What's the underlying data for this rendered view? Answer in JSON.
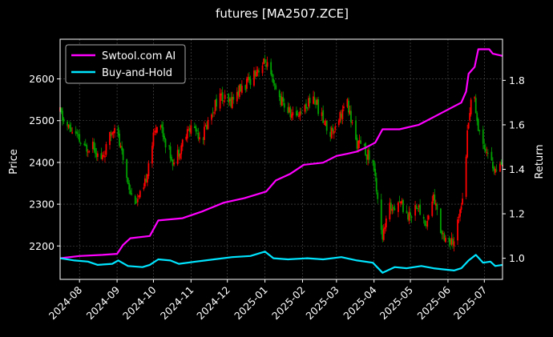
{
  "chart_data": {
    "type": "candlestick+line",
    "title": "futures [MA2507.ZCE]",
    "ylabel_left": "Price",
    "ylabel_right": "Return",
    "x_range": [
      "2024-07-16",
      "2025-07-16"
    ],
    "ylim_left": [
      2120,
      2695
    ],
    "ylim_right": [
      0.905,
      1.985
    ],
    "left_ticks": [
      2200,
      2300,
      2400,
      2500,
      2600
    ],
    "right_ticks": [
      1.0,
      1.2,
      1.4,
      1.6,
      1.8
    ],
    "x_ticks": [
      "2024-08",
      "2024-09",
      "2024-10",
      "2024-11",
      "2024-12",
      "2025-01",
      "2025-02",
      "2025-03",
      "2025-04",
      "2025-05",
      "2025-06",
      "2025-07"
    ],
    "grid": true,
    "legend_position": "top-left",
    "colors": {
      "up": "#ff0000",
      "down": "#00a000",
      "ai": "#ff00ff",
      "bh": "#00e5ff",
      "background": "#000000"
    },
    "price_path": [
      [
        "2024-07-16",
        2520
      ],
      [
        "2024-07-20",
        2490
      ],
      [
        "2024-07-28",
        2470
      ],
      [
        "2024-08-05",
        2430
      ],
      [
        "2024-08-12",
        2450
      ],
      [
        "2024-08-18",
        2400
      ],
      [
        "2024-08-24",
        2440
      ],
      [
        "2024-08-30",
        2495
      ],
      [
        "2024-09-04",
        2430
      ],
      [
        "2024-09-08",
        2380
      ],
      [
        "2024-09-13",
        2320
      ],
      [
        "2024-09-18",
        2310
      ],
      [
        "2024-09-23",
        2330
      ],
      [
        "2024-09-28",
        2420
      ],
      [
        "2024-10-05",
        2510
      ],
      [
        "2024-10-12",
        2440
      ],
      [
        "2024-10-18",
        2400
      ],
      [
        "2024-10-25",
        2450
      ],
      [
        "2024-11-02",
        2490
      ],
      [
        "2024-11-10",
        2460
      ],
      [
        "2024-11-18",
        2520
      ],
      [
        "2024-11-24",
        2560
      ],
      [
        "2024-12-02",
        2540
      ],
      [
        "2024-12-10",
        2570
      ],
      [
        "2024-12-18",
        2590
      ],
      [
        "2024-12-24",
        2620
      ],
      [
        "2025-01-02",
        2640
      ],
      [
        "2025-01-08",
        2580
      ],
      [
        "2025-01-16",
        2540
      ],
      [
        "2025-01-24",
        2510
      ],
      [
        "2025-02-02",
        2530
      ],
      [
        "2025-02-10",
        2560
      ],
      [
        "2025-02-18",
        2500
      ],
      [
        "2025-02-24",
        2470
      ],
      [
        "2025-03-03",
        2510
      ],
      [
        "2025-03-10",
        2540
      ],
      [
        "2025-03-17",
        2450
      ],
      [
        "2025-03-24",
        2430
      ],
      [
        "2025-03-31",
        2400
      ],
      [
        "2025-04-04",
        2320
      ],
      [
        "2025-04-08",
        2220
      ],
      [
        "2025-04-14",
        2290
      ],
      [
        "2025-04-22",
        2310
      ],
      [
        "2025-04-30",
        2270
      ],
      [
        "2025-05-06",
        2300
      ],
      [
        "2025-05-14",
        2250
      ],
      [
        "2025-05-20",
        2320
      ],
      [
        "2025-05-26",
        2240
      ],
      [
        "2025-06-02",
        2210
      ],
      [
        "2025-06-06",
        2200
      ],
      [
        "2025-06-10",
        2280
      ],
      [
        "2025-06-14",
        2340
      ],
      [
        "2025-06-18",
        2510
      ],
      [
        "2025-06-22",
        2580
      ],
      [
        "2025-06-26",
        2480
      ],
      [
        "2025-06-30",
        2450
      ],
      [
        "2025-07-04",
        2420
      ],
      [
        "2025-07-10",
        2380
      ],
      [
        "2025-07-16",
        2385
      ]
    ],
    "series": [
      {
        "name": "Swtool.com AI",
        "points": [
          [
            "2024-07-16",
            1.0
          ],
          [
            "2024-08-01",
            1.01
          ],
          [
            "2024-08-20",
            1.015
          ],
          [
            "2024-09-01",
            1.02
          ],
          [
            "2024-09-06",
            1.06
          ],
          [
            "2024-09-12",
            1.09
          ],
          [
            "2024-09-28",
            1.1
          ],
          [
            "2024-10-05",
            1.17
          ],
          [
            "2024-10-25",
            1.18
          ],
          [
            "2024-11-10",
            1.21
          ],
          [
            "2024-11-28",
            1.25
          ],
          [
            "2024-12-15",
            1.27
          ],
          [
            "2025-01-02",
            1.3
          ],
          [
            "2025-01-10",
            1.35
          ],
          [
            "2025-01-22",
            1.38
          ],
          [
            "2025-02-02",
            1.42
          ],
          [
            "2025-02-18",
            1.43
          ],
          [
            "2025-03-01",
            1.46
          ],
          [
            "2025-03-10",
            1.47
          ],
          [
            "2025-03-18",
            1.48
          ],
          [
            "2025-03-26",
            1.5
          ],
          [
            "2025-04-02",
            1.52
          ],
          [
            "2025-04-08",
            1.58
          ],
          [
            "2025-04-22",
            1.58
          ],
          [
            "2025-05-08",
            1.6
          ],
          [
            "2025-05-22",
            1.64
          ],
          [
            "2025-06-05",
            1.68
          ],
          [
            "2025-06-12",
            1.7
          ],
          [
            "2025-06-16",
            1.75
          ],
          [
            "2025-06-18",
            1.83
          ],
          [
            "2025-06-23",
            1.86
          ],
          [
            "2025-06-26",
            1.94
          ],
          [
            "2025-07-05",
            1.94
          ],
          [
            "2025-07-08",
            1.92
          ],
          [
            "2025-07-16",
            1.91
          ]
        ]
      },
      {
        "name": "Buy-and-Hold",
        "points": [
          [
            "2024-07-16",
            1.0
          ],
          [
            "2024-07-28",
            0.99
          ],
          [
            "2024-08-08",
            0.985
          ],
          [
            "2024-08-16",
            0.97
          ],
          [
            "2024-08-28",
            0.975
          ],
          [
            "2024-09-02",
            0.99
          ],
          [
            "2024-09-10",
            0.965
          ],
          [
            "2024-09-22",
            0.96
          ],
          [
            "2024-09-28",
            0.97
          ],
          [
            "2024-10-05",
            0.995
          ],
          [
            "2024-10-15",
            0.99
          ],
          [
            "2024-10-22",
            0.975
          ],
          [
            "2024-11-05",
            0.985
          ],
          [
            "2024-11-20",
            0.995
          ],
          [
            "2024-12-05",
            1.005
          ],
          [
            "2024-12-20",
            1.01
          ],
          [
            "2025-01-01",
            1.03
          ],
          [
            "2025-01-08",
            1.0
          ],
          [
            "2025-01-20",
            0.995
          ],
          [
            "2025-02-05",
            1.0
          ],
          [
            "2025-02-18",
            0.995
          ],
          [
            "2025-03-05",
            1.005
          ],
          [
            "2025-03-18",
            0.99
          ],
          [
            "2025-03-31",
            0.98
          ],
          [
            "2025-04-08",
            0.935
          ],
          [
            "2025-04-18",
            0.96
          ],
          [
            "2025-04-28",
            0.955
          ],
          [
            "2025-05-10",
            0.965
          ],
          [
            "2025-05-20",
            0.955
          ],
          [
            "2025-05-28",
            0.95
          ],
          [
            "2025-06-06",
            0.945
          ],
          [
            "2025-06-12",
            0.955
          ],
          [
            "2025-06-18",
            0.99
          ],
          [
            "2025-06-24",
            1.015
          ],
          [
            "2025-06-30",
            0.98
          ],
          [
            "2025-07-06",
            0.985
          ],
          [
            "2025-07-10",
            0.965
          ],
          [
            "2025-07-16",
            0.97
          ]
        ]
      }
    ]
  }
}
